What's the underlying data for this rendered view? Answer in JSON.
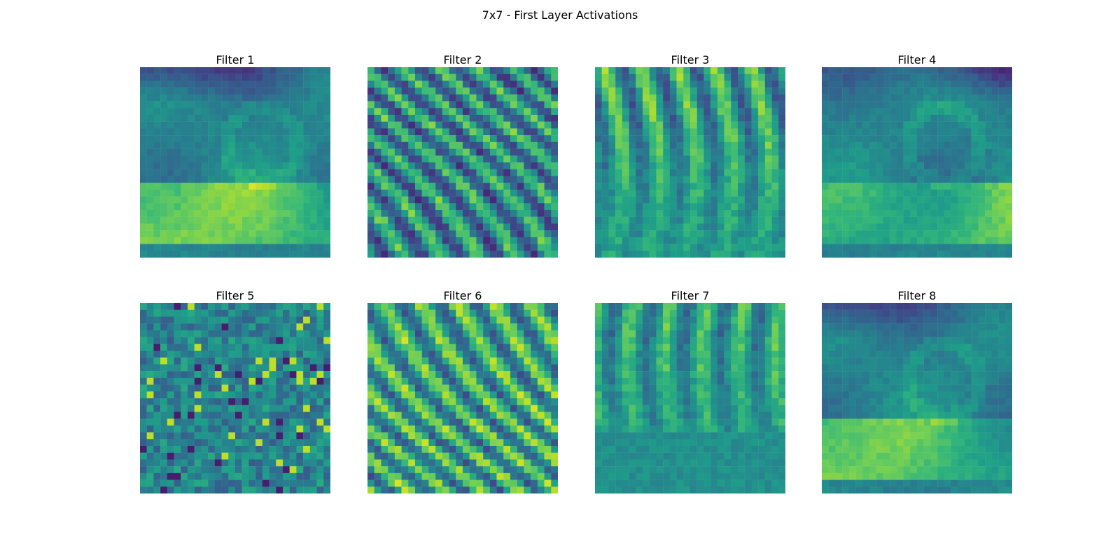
{
  "figure": {
    "suptitle": "7x7 - First Layer Activations"
  },
  "chart_data": {
    "type": "heatmap",
    "colormap": "viridis",
    "grid_size": [
      28,
      28
    ],
    "panels": [
      {
        "title": "Filter 1",
        "pattern": "smooth-top-dark-bottom-bright",
        "seed": 1
      },
      {
        "title": "Filter 2",
        "pattern": "diagonal-ridges",
        "seed": 2
      },
      {
        "title": "Filter 3",
        "pattern": "vertical-ridges",
        "seed": 3
      },
      {
        "title": "Filter 4",
        "pattern": "smooth-top-dark-bottom-bright",
        "seed": 4
      },
      {
        "title": "Filter 5",
        "pattern": "noisy-speckle",
        "seed": 5
      },
      {
        "title": "Filter 6",
        "pattern": "diagonal-ridges-bright",
        "seed": 6
      },
      {
        "title": "Filter 7",
        "pattern": "vertical-ridges-mid",
        "seed": 7
      },
      {
        "title": "Filter 8",
        "pattern": "smooth-top-dark-bottom-bright",
        "seed": 8
      }
    ],
    "colors": {
      "viridis": [
        "#440154",
        "#482878",
        "#3e4989",
        "#31688e",
        "#26828e",
        "#1f9e89",
        "#35b779",
        "#6ece58",
        "#b5de2b",
        "#fde725"
      ]
    }
  }
}
